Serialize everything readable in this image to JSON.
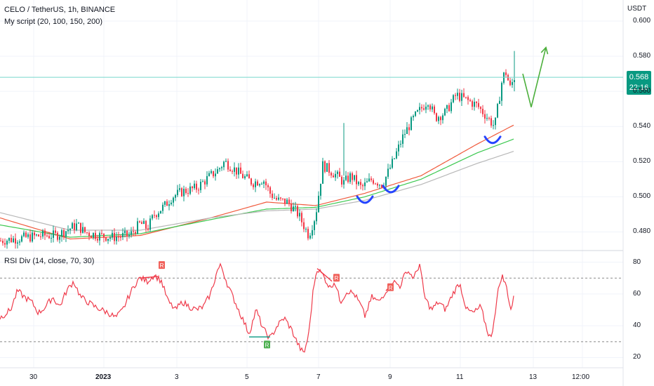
{
  "header": {
    "title": "CELO / TetherUS, 1h, BINANCE",
    "indicator": "My script (20, 100, 150, 200)",
    "currency": "USDT"
  },
  "rsi_header": {
    "title": "RSI Div (14, close, 70, 30)"
  },
  "price_badge": {
    "price": "0.568",
    "countdown": "22:16"
  },
  "colors": {
    "up": "#089981",
    "down": "#f23645",
    "ma_red": "#f05a3c",
    "ma_green": "#3cc850",
    "ma_gray": "#b8b8b8",
    "rsi_line": "#ef3b4b",
    "curves": "#2545ff",
    "arrow": "#4caf3c",
    "price_line": "#77d8cc"
  },
  "chart_data": [
    {
      "type": "candlestick",
      "title": "CELO / TetherUS, 1h, BINANCE",
      "x_ticks": [
        "30",
        "2023",
        "3",
        "5",
        "7",
        "9",
        "11",
        "13",
        "12:00"
      ],
      "y_ticks": [
        0.48,
        0.5,
        0.52,
        0.54,
        0.56,
        0.58,
        0.6
      ],
      "ylim": [
        0.475,
        0.6
      ],
      "current_price": 0.568,
      "close_path": [
        [
          0,
          0.475
        ],
        [
          20,
          0.476
        ],
        [
          40,
          0.477
        ],
        [
          60,
          0.478
        ],
        [
          80,
          0.478
        ],
        [
          100,
          0.482
        ],
        [
          110,
          0.484
        ],
        [
          120,
          0.48
        ],
        [
          140,
          0.478
        ],
        [
          160,
          0.477
        ],
        [
          185,
          0.478
        ],
        [
          200,
          0.485
        ],
        [
          210,
          0.482
        ],
        [
          220,
          0.49
        ],
        [
          235,
          0.495
        ],
        [
          245,
          0.5
        ],
        [
          260,
          0.503
        ],
        [
          280,
          0.505
        ],
        [
          300,
          0.512
        ],
        [
          310,
          0.515
        ],
        [
          320,
          0.52
        ],
        [
          330,
          0.517
        ],
        [
          345,
          0.512
        ],
        [
          360,
          0.508
        ],
        [
          375,
          0.51
        ],
        [
          385,
          0.502
        ],
        [
          395,
          0.498
        ],
        [
          410,
          0.497
        ],
        [
          425,
          0.49
        ],
        [
          440,
          0.478
        ],
        [
          450,
          0.49
        ],
        [
          460,
          0.518
        ],
        [
          470,
          0.515
        ],
        [
          480,
          0.512
        ],
        [
          490,
          0.508
        ],
        [
          500,
          0.512
        ],
        [
          515,
          0.505
        ],
        [
          530,
          0.51
        ],
        [
          545,
          0.507
        ],
        [
          560,
          0.52
        ],
        [
          575,
          0.535
        ],
        [
          590,
          0.545
        ],
        [
          600,
          0.55
        ],
        [
          610,
          0.555
        ],
        [
          620,
          0.545
        ],
        [
          635,
          0.548
        ],
        [
          650,
          0.558
        ],
        [
          665,
          0.555
        ],
        [
          680,
          0.552
        ],
        [
          695,
          0.545
        ],
        [
          705,
          0.54
        ],
        [
          715,
          0.565
        ],
        [
          720,
          0.572
        ],
        [
          727,
          0.562
        ],
        [
          733,
          0.568
        ]
      ],
      "moving_averages": [
        {
          "name": "red",
          "path": [
            [
              0,
              0.488
            ],
            [
              100,
              0.476
            ],
            [
              200,
              0.478
            ],
            [
              300,
              0.488
            ],
            [
              380,
              0.497
            ],
            [
              450,
              0.495
            ],
            [
              520,
              0.502
            ],
            [
              600,
              0.512
            ],
            [
              680,
              0.53
            ],
            [
              733,
              0.541
            ]
          ]
        },
        {
          "name": "green",
          "path": [
            [
              0,
              0.484
            ],
            [
              100,
              0.477
            ],
            [
              200,
              0.479
            ],
            [
              300,
              0.487
            ],
            [
              380,
              0.493
            ],
            [
              450,
              0.494
            ],
            [
              520,
              0.5
            ],
            [
              600,
              0.51
            ],
            [
              680,
              0.525
            ],
            [
              733,
              0.533
            ]
          ]
        },
        {
          "name": "gray",
          "path": [
            [
              0,
              0.491
            ],
            [
              100,
              0.481
            ],
            [
              200,
              0.481
            ],
            [
              300,
              0.488
            ],
            [
              380,
              0.492
            ],
            [
              450,
              0.493
            ],
            [
              520,
              0.498
            ],
            [
              600,
              0.507
            ],
            [
              680,
              0.519
            ],
            [
              733,
              0.526
            ]
          ]
        }
      ],
      "annotations": {
        "curves_at": [
          [
            520,
            0.497
          ],
          [
            557,
            0.503
          ],
          [
            702,
            0.531
          ]
        ],
        "arrow_path": [
          [
            745,
            0.57
          ],
          [
            757,
            0.551
          ],
          [
            778,
            0.585
          ]
        ]
      }
    },
    {
      "type": "line",
      "title": "RSI Div (14, close, 70, 30)",
      "y_ticks": [
        20,
        40,
        60,
        80
      ],
      "ylim": [
        18,
        82
      ],
      "levels": [
        70,
        30
      ],
      "series": [
        {
          "name": "",
          "path": [
            [
              0,
              45
            ],
            [
              15,
              50
            ],
            [
              25,
              62
            ],
            [
              35,
              58
            ],
            [
              45,
              55
            ],
            [
              55,
              48
            ],
            [
              65,
              52
            ],
            [
              75,
              58
            ],
            [
              85,
              52
            ],
            [
              95,
              62
            ],
            [
              105,
              68
            ],
            [
              115,
              58
            ],
            [
              125,
              55
            ],
            [
              135,
              52
            ],
            [
              145,
              50
            ],
            [
              155,
              48
            ],
            [
              165,
              45
            ],
            [
              175,
              50
            ],
            [
              185,
              60
            ],
            [
              195,
              68
            ],
            [
              200,
              70
            ],
            [
              210,
              68
            ],
            [
              220,
              72
            ],
            [
              230,
              68
            ],
            [
              240,
              55
            ],
            [
              250,
              50
            ],
            [
              260,
              55
            ],
            [
              270,
              52
            ],
            [
              280,
              50
            ],
            [
              290,
              52
            ],
            [
              300,
              60
            ],
            [
              310,
              75
            ],
            [
              315,
              78
            ],
            [
              325,
              65
            ],
            [
              335,
              55
            ],
            [
              345,
              45
            ],
            [
              355,
              35
            ],
            [
              365,
              50
            ],
            [
              375,
              38
            ],
            [
              385,
              32
            ],
            [
              395,
              40
            ],
            [
              405,
              45
            ],
            [
              415,
              38
            ],
            [
              425,
              28
            ],
            [
              433,
              22
            ],
            [
              440,
              35
            ],
            [
              447,
              65
            ],
            [
              452,
              76
            ],
            [
              460,
              72
            ],
            [
              470,
              64
            ],
            [
              477,
              68
            ],
            [
              485,
              55
            ],
            [
              495,
              62
            ],
            [
              505,
              60
            ],
            [
              515,
              52
            ],
            [
              520,
              46
            ],
            [
              530,
              58
            ],
            [
              540,
              55
            ],
            [
              550,
              62
            ],
            [
              560,
              68
            ],
            [
              570,
              65
            ],
            [
              580,
              75
            ],
            [
              590,
              70
            ],
            [
              598,
              79
            ],
            [
              605,
              58
            ],
            [
              615,
              50
            ],
            [
              625,
              55
            ],
            [
              635,
              50
            ],
            [
              645,
              60
            ],
            [
              655,
              67
            ],
            [
              665,
              50
            ],
            [
              675,
              48
            ],
            [
              685,
              52
            ],
            [
              695,
              36
            ],
            [
              700,
              32
            ],
            [
              710,
              62
            ],
            [
              715,
              72
            ],
            [
              722,
              64
            ],
            [
              728,
              50
            ],
            [
              733,
              59
            ]
          ]
        }
      ],
      "div_markers": [
        {
          "label": "R",
          "type": "bearish",
          "x": 230,
          "y": 78
        },
        {
          "label": "R",
          "type": "bearish",
          "x": 479,
          "y": 70
        },
        {
          "label": "R",
          "type": "bearish",
          "x": 556,
          "y": 64
        },
        {
          "label": "R",
          "type": "bullish",
          "x": 380,
          "y": 28
        }
      ],
      "div_lines": [
        {
          "type": "bearish",
          "from": [
            200,
            70
          ],
          "to": [
            225,
            71
          ]
        },
        {
          "type": "bearish",
          "from": [
            452,
            76
          ],
          "to": [
            473,
            68
          ]
        },
        {
          "type": "bearish",
          "from": [
            550,
            62
          ],
          "to": [
            558,
            66
          ]
        },
        {
          "type": "bullish",
          "from": [
            355,
            33
          ],
          "to": [
            385,
            33
          ]
        }
      ]
    }
  ]
}
